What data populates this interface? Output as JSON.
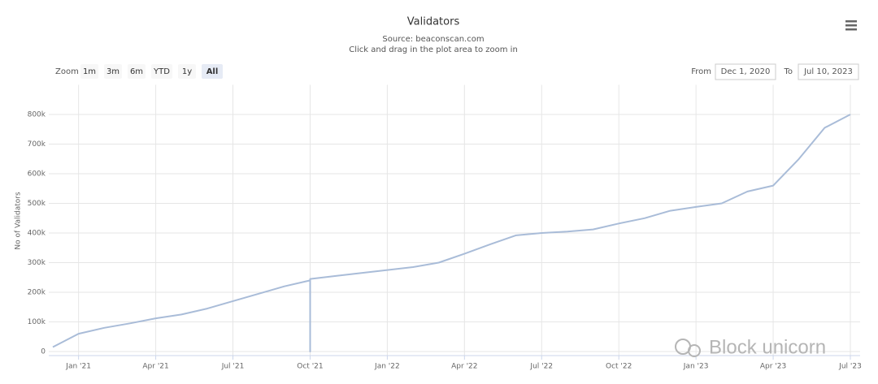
{
  "chart_data": {
    "type": "line",
    "title": "Validators",
    "subtitle": "Source: beaconscan.com",
    "hint": "Click and drag in the plot area to zoom in",
    "zoom_label": "Zoom",
    "zoom_buttons": [
      "1m",
      "3m",
      "6m",
      "YTD",
      "1y",
      "All"
    ],
    "zoom_selected": "All",
    "from_label": "From",
    "from": "Dec 1, 2020",
    "to_label": "To",
    "to": "Jul 10, 2023",
    "y_label": "No of Validators",
    "watermark": "Block unicorn",
    "color": "#a9bcd8",
    "grid": true,
    "xgrid": true,
    "x": [
      "2020-12",
      "2021-01",
      "2021-02",
      "2021-03",
      "2021-04",
      "2021-05",
      "2021-06",
      "2021-07",
      "2021-08",
      "2021-09",
      "2021-10",
      "2021-10",
      "2021-10",
      "2021-11",
      "2021-12",
      "2022-01",
      "2022-02",
      "2022-03",
      "2022-04",
      "2022-05",
      "2022-06",
      "2022-07",
      "2022-08",
      "2022-09",
      "2022-10",
      "2022-11",
      "2022-12",
      "2023-01",
      "2023-02",
      "2023-03",
      "2023-04",
      "2023-05",
      "2023-06",
      "2023-07"
    ],
    "values": [
      15000,
      60000,
      80000,
      95000,
      112000,
      125000,
      145000,
      170000,
      195000,
      220000,
      240000,
      0,
      245000,
      255000,
      265000,
      275000,
      285000,
      300000,
      330000,
      362000,
      392000,
      400000,
      405000,
      412000,
      432000,
      450000,
      475000,
      488000,
      500000,
      540000,
      560000,
      650000,
      755000,
      800000
    ],
    "xlim": [
      "2020-12",
      "2023-07"
    ],
    "xticks": [
      {
        "value": "2021-01",
        "label": "Jan '21"
      },
      {
        "value": "2021-04",
        "label": "Apr '21"
      },
      {
        "value": "2021-07",
        "label": "Jul '21"
      },
      {
        "value": "2021-10",
        "label": "Oct '21"
      },
      {
        "value": "2022-01",
        "label": "Jan '22"
      },
      {
        "value": "2022-04",
        "label": "Apr '22"
      },
      {
        "value": "2022-07",
        "label": "Jul '22"
      },
      {
        "value": "2022-10",
        "label": "Oct '22"
      },
      {
        "value": "2023-01",
        "label": "Jan '23"
      },
      {
        "value": "2023-04",
        "label": "Apr '23"
      },
      {
        "value": "2023-07",
        "label": "Jul '23"
      }
    ],
    "ylim": [
      0,
      900000
    ],
    "yticks": [
      0,
      {
        "value": 100000,
        "label": "100k"
      },
      {
        "value": 200000,
        "label": "200k"
      },
      {
        "value": 300000,
        "label": "300k"
      },
      {
        "value": 400000,
        "label": "400k"
      },
      {
        "value": 500000,
        "label": "500k"
      },
      {
        "value": 600000,
        "label": "600k"
      },
      {
        "value": 700000,
        "label": "700k"
      },
      {
        "value": 800000,
        "label": "800k"
      }
    ]
  }
}
